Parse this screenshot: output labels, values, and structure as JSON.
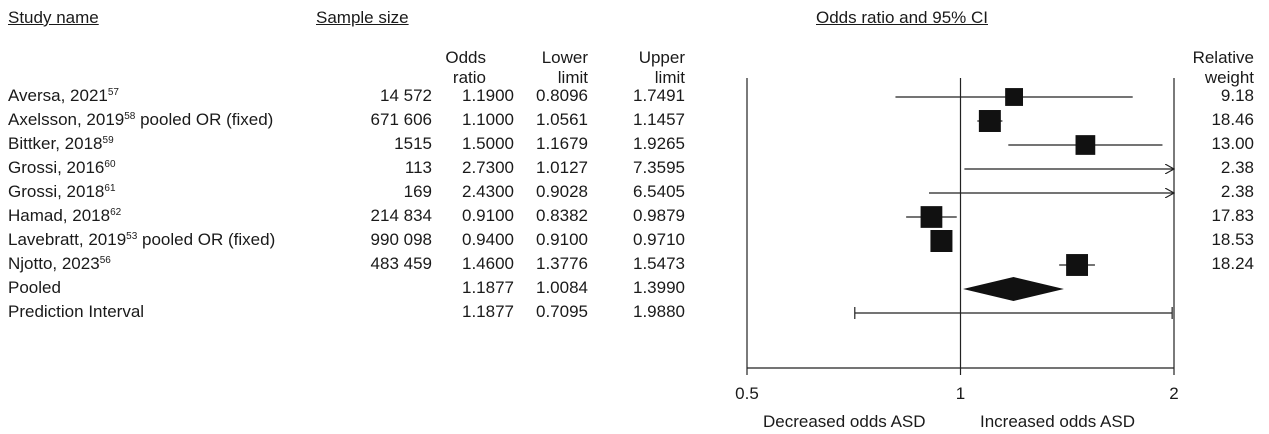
{
  "headers": {
    "study_name": "Study name",
    "sample_size": "Sample size",
    "odds_ratio_line1": "Odds",
    "odds_ratio_line2": "ratio",
    "lower_line1": "Lower",
    "lower_line2": "limit",
    "upper_line1": "Upper",
    "upper_line2": "limit",
    "plot_title": "Odds ratio and 95% CI",
    "weight_line1": "Relative",
    "weight_line2": "weight"
  },
  "studies": [
    {
      "name": "Aversa, 2021",
      "ref": "57",
      "suffix": "",
      "n": "14 572",
      "or": "1.1900",
      "lower": "0.8096",
      "upper": "1.7491",
      "weight": "9.18"
    },
    {
      "name": "Axelsson, 2019",
      "ref": "58",
      "suffix": " pooled OR (fixed)",
      "n": "671 606",
      "or": "1.1000",
      "lower": "1.0561",
      "upper": "1.1457",
      "weight": "18.46"
    },
    {
      "name": "Bittker, 2018",
      "ref": "59",
      "suffix": "",
      "n": "1515",
      "or": "1.5000",
      "lower": "1.1679",
      "upper": "1.9265",
      "weight": "13.00"
    },
    {
      "name": "Grossi, 2016",
      "ref": "60",
      "suffix": "",
      "n": "113",
      "or": "2.7300",
      "lower": "1.0127",
      "upper": "7.3595",
      "weight": "2.38"
    },
    {
      "name": "Grossi, 2018",
      "ref": "61",
      "suffix": "",
      "n": "169",
      "or": "2.4300",
      "lower": "0.9028",
      "upper": "6.5405",
      "weight": "2.38"
    },
    {
      "name": "Hamad, 2018",
      "ref": "62",
      "suffix": "",
      "n": "214 834",
      "or": "0.9100",
      "lower": "0.8382",
      "upper": "0.9879",
      "weight": "17.83"
    },
    {
      "name": "Lavebratt, 2019",
      "ref": "53",
      "suffix": " pooled OR (fixed)",
      "n": "990 098",
      "or": "0.9400",
      "lower": "0.9100",
      "upper": "0.9710",
      "weight": "18.53"
    },
    {
      "name": "Njotto, 2023",
      "ref": "56",
      "suffix": "",
      "n": "483 459",
      "or": "1.4600",
      "lower": "1.3776",
      "upper": "1.5473",
      "weight": "18.24"
    },
    {
      "name": "Pooled",
      "ref": "",
      "suffix": "",
      "n": "",
      "or": "1.1877",
      "lower": "1.0084",
      "upper": "1.3990",
      "weight": ""
    },
    {
      "name": "Prediction Interval",
      "ref": "",
      "suffix": "",
      "n": "",
      "or": "1.1877",
      "lower": "0.7095",
      "upper": "1.9880",
      "weight": ""
    }
  ],
  "axis": {
    "ticks": [
      "0.5",
      "1",
      "2"
    ],
    "label_left": "Decreased odds ASD",
    "label_right": "Increased odds ASD"
  },
  "chart_data": {
    "type": "forest",
    "scale": "log",
    "xlim": [
      0.5,
      2
    ],
    "reference_line": 1,
    "title": "Odds ratio and 95% CI",
    "xticks": [
      0.5,
      1,
      2
    ],
    "points": [
      {
        "label": "Aversa, 2021",
        "or": 1.19,
        "lower": 0.8096,
        "upper": 1.7491,
        "weight": 9.18
      },
      {
        "label": "Axelsson, 2019 pooled OR (fixed)",
        "or": 1.1,
        "lower": 1.0561,
        "upper": 1.1457,
        "weight": 18.46
      },
      {
        "label": "Bittker, 2018",
        "or": 1.5,
        "lower": 1.1679,
        "upper": 1.9265,
        "weight": 13.0
      },
      {
        "label": "Grossi, 2016",
        "or": 2.73,
        "lower": 1.0127,
        "upper": 7.3595,
        "weight": 2.38
      },
      {
        "label": "Grossi, 2018",
        "or": 2.43,
        "lower": 0.9028,
        "upper": 6.5405,
        "weight": 2.38
      },
      {
        "label": "Hamad, 2018",
        "or": 0.91,
        "lower": 0.8382,
        "upper": 0.9879,
        "weight": 17.83
      },
      {
        "label": "Lavebratt, 2019 pooled OR (fixed)",
        "or": 0.94,
        "lower": 0.91,
        "upper": 0.971,
        "weight": 18.53
      },
      {
        "label": "Njotto, 2023",
        "or": 1.46,
        "lower": 1.3776,
        "upper": 1.5473,
        "weight": 18.24
      }
    ],
    "pooled": {
      "or": 1.1877,
      "lower": 1.0084,
      "upper": 1.399
    },
    "prediction_interval": {
      "lower": 0.7095,
      "upper": 1.988
    }
  }
}
